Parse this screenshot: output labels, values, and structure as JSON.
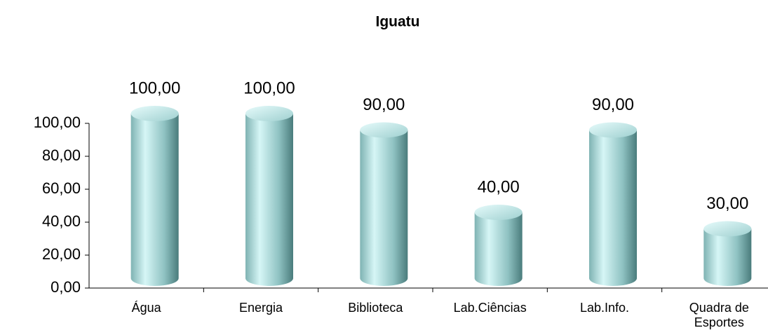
{
  "chart_data": {
    "type": "bar",
    "title": "Iguatu",
    "categories": [
      "Água",
      "Energia",
      "Biblioteca",
      "Lab.Ciências",
      "Lab.Info.",
      "Quadra de Esportes"
    ],
    "values": [
      100,
      100,
      90,
      40,
      90,
      30
    ],
    "value_labels": [
      "100,00",
      "100,00",
      "90,00",
      "40,00",
      "90,00",
      "30,00"
    ],
    "color": "#8cc4c4",
    "ylim": [
      0,
      100
    ],
    "yticks": [
      {
        "value": 0,
        "label": "0,00"
      },
      {
        "value": 20,
        "label": "20,00"
      },
      {
        "value": 40,
        "label": "40,00"
      },
      {
        "value": 60,
        "label": "60,00"
      },
      {
        "value": 80,
        "label": "80,00"
      },
      {
        "value": 100,
        "label": "100,00"
      }
    ],
    "grid": false
  }
}
